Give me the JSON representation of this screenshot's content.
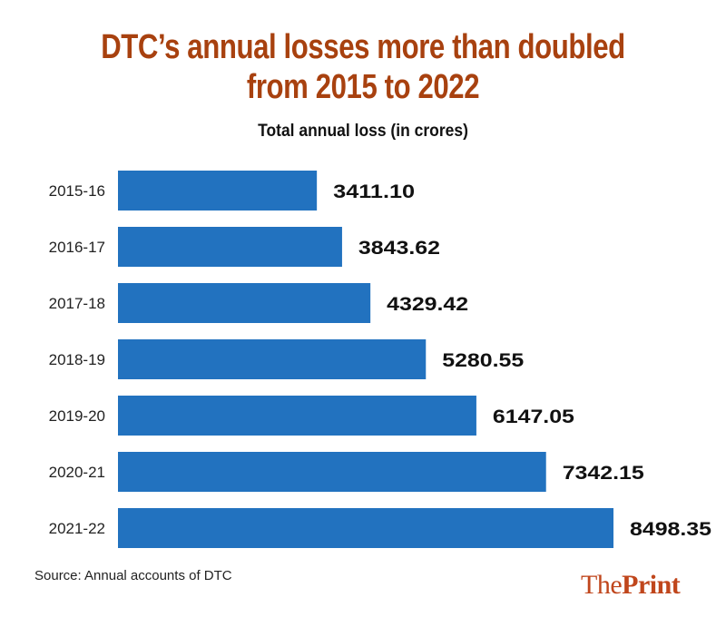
{
  "chart_data": {
    "type": "bar",
    "orientation": "horizontal",
    "title": "DTC’s annual losses more than doubled from 2015 to 2022",
    "title_lines": [
      "DTC’s annual losses more than doubled",
      "from 2015 to 2022"
    ],
    "subtitle": "Total annual loss (in crores)",
    "categories": [
      "2015-16",
      "2016-17",
      "2017-18",
      "2018-19",
      "2019-20",
      "2020-21",
      "2021-22"
    ],
    "values": [
      3411.1,
      3843.62,
      4329.42,
      5280.55,
      6147.05,
      7342.15,
      8498.35
    ],
    "value_labels": [
      "3411.10",
      "3843.62",
      "4329.42",
      "5280.55",
      "6147.05",
      "7342.15",
      "8498.35"
    ],
    "xlim": [
      0,
      8498.35
    ],
    "grid": false,
    "bar_color": "#2272bf",
    "title_color": "#a8410f"
  },
  "footer": {
    "source": "Source: Annual accounts of DTC",
    "logo_light": "The",
    "logo_bold": "Print",
    "logo_color": "#c0461c"
  }
}
